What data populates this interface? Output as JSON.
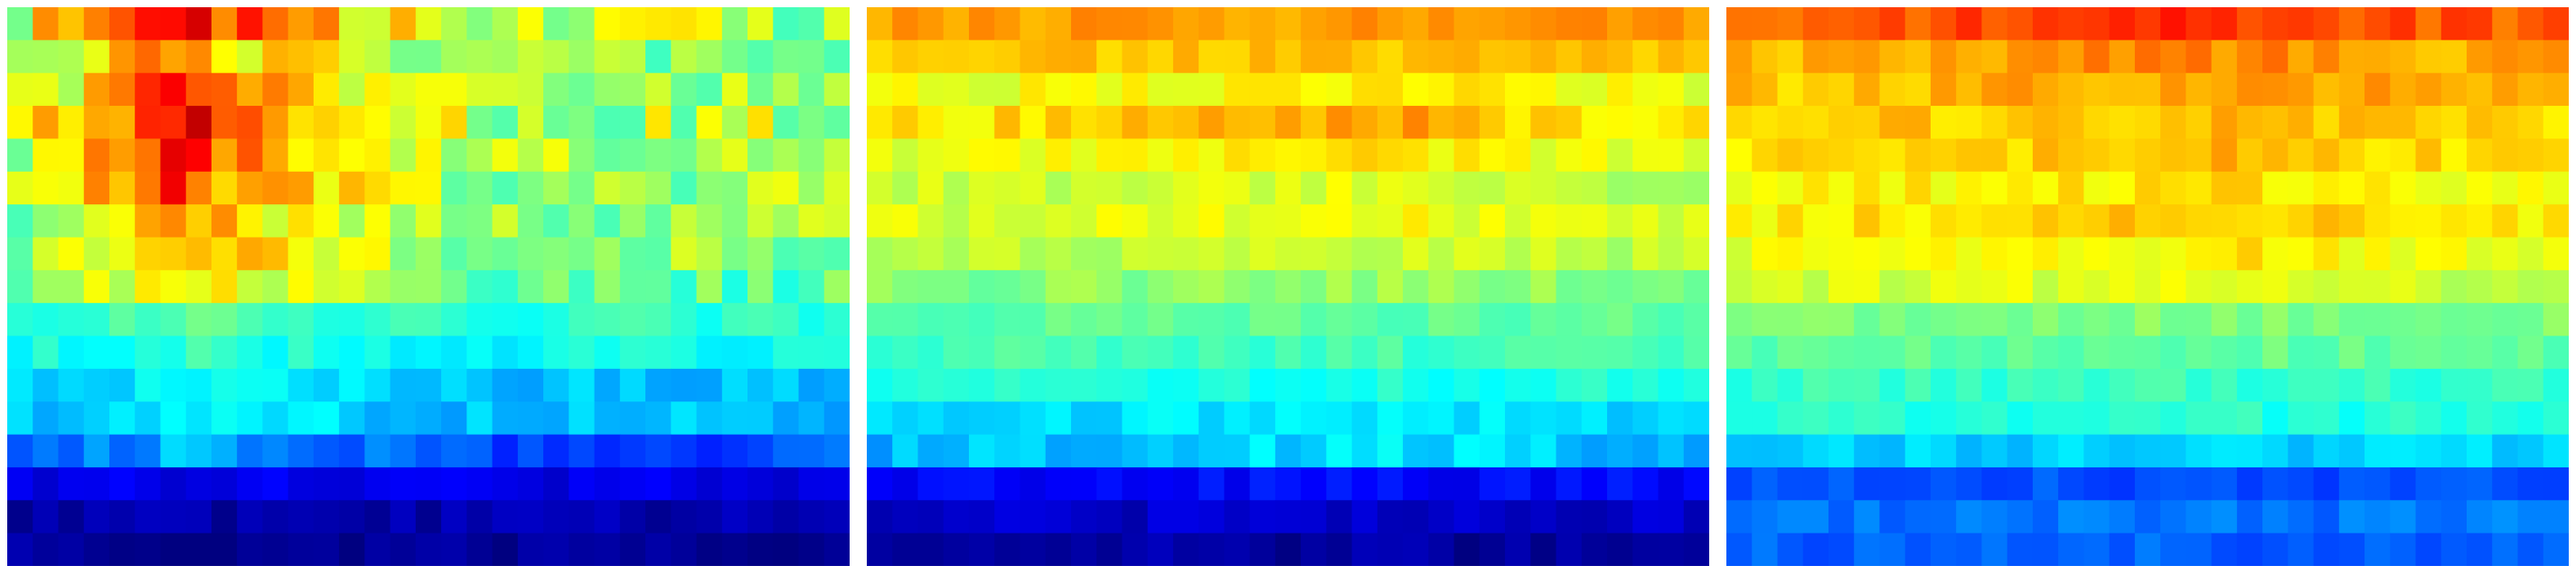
{
  "chart_data": [
    {
      "type": "heatmap",
      "colormap": "jet",
      "grid": false,
      "axes": "hidden",
      "value_range": [
        0,
        1
      ],
      "n_rows": 17,
      "n_cols": 33,
      "column_profile": [
        0.0,
        0.2,
        0.35,
        0.5,
        0.63,
        0.8,
        1.0,
        0.9,
        0.72,
        0.62,
        0.55,
        0.48,
        0.4,
        0.33,
        0.25,
        0.18,
        0.1,
        0.05,
        0.0,
        0.0,
        0.0,
        0.0,
        0.0,
        0.0,
        0.0,
        0.0,
        0.0,
        0.0,
        0.0,
        0.0,
        0.0,
        0.0,
        0.0
      ],
      "rows": [
        {
          "base": 0.55,
          "amp": 0.4
        },
        {
          "base": 0.5,
          "amp": 0.25
        },
        {
          "base": 0.52,
          "amp": 0.3
        },
        {
          "base": 0.55,
          "amp": 0.38
        },
        {
          "base": 0.55,
          "amp": 0.28
        },
        {
          "base": 0.53,
          "amp": 0.28
        },
        {
          "base": 0.52,
          "amp": 0.23
        },
        {
          "base": 0.52,
          "amp": 0.22
        },
        {
          "base": 0.47,
          "amp": 0.2
        },
        {
          "base": 0.42,
          "amp": 0.05
        },
        {
          "base": 0.38,
          "amp": 0.05
        },
        {
          "base": 0.32,
          "amp": 0.06
        },
        {
          "base": 0.31,
          "amp": 0.06
        },
        {
          "base": 0.2,
          "amp": 0.1
        },
        {
          "base": 0.1,
          "amp": 0.0
        },
        {
          "base": 0.04,
          "amp": 0.0
        },
        {
          "base": 0.02,
          "amp": 0.0
        }
      ]
    },
    {
      "type": "heatmap",
      "colormap": "jet",
      "grid": false,
      "axes": "hidden",
      "value_range": [
        0,
        1
      ],
      "n_rows": 17,
      "n_cols": 33,
      "column_profile": [
        0.0,
        0.05,
        0.1,
        0.15,
        0.2,
        0.25,
        0.3,
        0.35,
        0.4,
        0.45,
        0.5,
        0.55,
        0.6,
        0.65,
        0.7,
        0.75,
        0.8,
        0.85,
        0.9,
        0.95,
        1.0,
        0.9,
        0.8,
        0.7,
        0.6,
        0.5,
        0.4,
        0.3,
        0.2,
        0.1,
        0.05,
        0.0,
        0.0
      ],
      "rows": [
        {
          "base": 0.72,
          "amp": 0.0
        },
        {
          "base": 0.68,
          "amp": 0.0
        },
        {
          "base": 0.6,
          "amp": 0.05
        },
        {
          "base": 0.64,
          "amp": 0.08
        },
        {
          "base": 0.6,
          "amp": 0.05
        },
        {
          "base": 0.56,
          "amp": 0.05
        },
        {
          "base": 0.58,
          "amp": 0.04
        },
        {
          "base": 0.55,
          "amp": 0.03
        },
        {
          "base": 0.5,
          "amp": 0.03
        },
        {
          "base": 0.47,
          "amp": 0.0
        },
        {
          "base": 0.44,
          "amp": 0.0
        },
        {
          "base": 0.4,
          "amp": 0.0
        },
        {
          "base": 0.34,
          "amp": 0.02
        },
        {
          "base": 0.3,
          "amp": 0.05
        },
        {
          "base": 0.13,
          "amp": 0.0
        },
        {
          "base": 0.07,
          "amp": 0.0
        },
        {
          "base": 0.03,
          "amp": 0.0
        }
      ]
    },
    {
      "type": "heatmap",
      "colormap": "jet",
      "grid": false,
      "axes": "hidden",
      "value_range": [
        0,
        1
      ],
      "n_rows": 17,
      "n_cols": 33,
      "column_profile": [
        0.0,
        0.05,
        0.1,
        0.15,
        0.2,
        0.25,
        0.3,
        0.35,
        0.4,
        0.45,
        0.5,
        0.55,
        0.6,
        0.65,
        0.7,
        0.75,
        0.8,
        0.85,
        0.9,
        0.95,
        1.0,
        0.9,
        0.8,
        0.7,
        0.6,
        0.5,
        0.4,
        0.3,
        0.2,
        0.1,
        0.05,
        0.0,
        0.0
      ],
      "rows": [
        {
          "base": 0.78,
          "amp": 0.05
        },
        {
          "base": 0.7,
          "amp": 0.05
        },
        {
          "base": 0.68,
          "amp": 0.05
        },
        {
          "base": 0.66,
          "amp": 0.04
        },
        {
          "base": 0.65,
          "amp": 0.04
        },
        {
          "base": 0.62,
          "amp": 0.04
        },
        {
          "base": 0.64,
          "amp": 0.04
        },
        {
          "base": 0.6,
          "amp": 0.04
        },
        {
          "base": 0.57,
          "amp": 0.04
        },
        {
          "base": 0.5,
          "amp": 0.0
        },
        {
          "base": 0.47,
          "amp": 0.0
        },
        {
          "base": 0.43,
          "amp": 0.0
        },
        {
          "base": 0.41,
          "amp": 0.0
        },
        {
          "base": 0.33,
          "amp": 0.0
        },
        {
          "base": 0.2,
          "amp": 0.0
        },
        {
          "base": 0.24,
          "amp": 0.0
        },
        {
          "base": 0.22,
          "amp": 0.0
        }
      ]
    }
  ]
}
